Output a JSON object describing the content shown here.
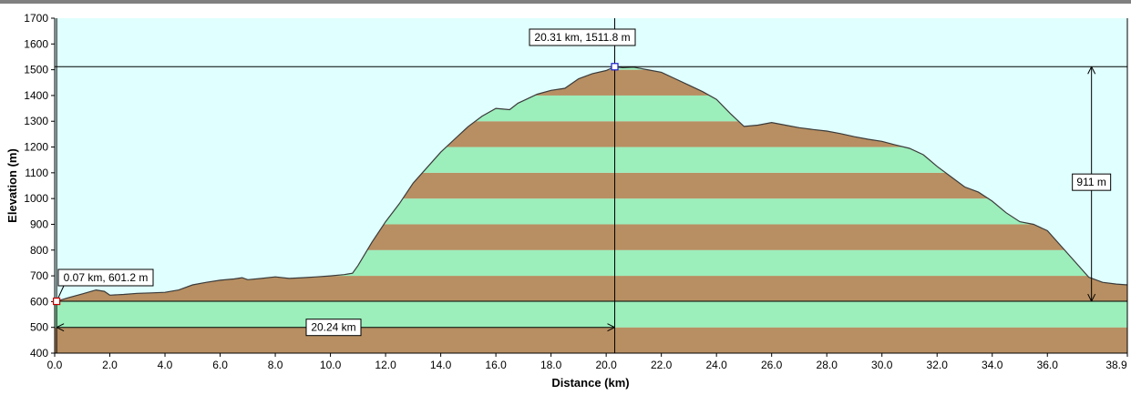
{
  "chart_data": {
    "type": "area",
    "xlabel": "Distance  (km)",
    "ylabel": "Elevation (m)",
    "xlim": [
      0,
      38.9
    ],
    "ylim": [
      400,
      1700
    ],
    "x_ticks": [
      0.0,
      2.0,
      4.0,
      6.0,
      8.0,
      10.0,
      12.0,
      14.0,
      16.0,
      18.0,
      20.0,
      22.0,
      24.0,
      26.0,
      28.0,
      30.0,
      32.0,
      34.0,
      36.0,
      38.9
    ],
    "x_tick_labels": [
      "0.0",
      "2.0",
      "4.0",
      "6.0",
      "8.0",
      "10.0",
      "12.0",
      "14.0",
      "16.0",
      "18.0",
      "20.0",
      "22.0",
      "24.0",
      "26.0",
      "28.0",
      "30.0",
      "32.0",
      "34.0",
      "36.0",
      "38.9"
    ],
    "y_ticks": [
      400,
      500,
      600,
      700,
      800,
      900,
      1000,
      1100,
      1200,
      1300,
      1400,
      1500,
      1600,
      1700
    ],
    "band_step": 100,
    "colors": {
      "sky": "#e0ffff",
      "band_green": "#9ceebb",
      "band_brown": "#b88f62",
      "profile_line": "#3a3a3a",
      "start_marker": "#cc0000",
      "end_marker": "#1a1acc"
    },
    "profile": {
      "x": [
        0.07,
        0.5,
        1.0,
        1.5,
        1.8,
        2.0,
        2.5,
        3.0,
        3.5,
        4.0,
        4.5,
        5.0,
        5.5,
        6.0,
        6.5,
        6.8,
        7.0,
        7.5,
        8.0,
        8.5,
        9.0,
        9.5,
        10.0,
        10.5,
        10.8,
        11.0,
        11.5,
        12.0,
        12.5,
        13.0,
        13.5,
        14.0,
        14.5,
        15.0,
        15.5,
        16.0,
        16.5,
        16.8,
        17.0,
        17.5,
        18.0,
        18.5,
        19.0,
        19.5,
        20.0,
        20.31,
        20.6,
        21.0,
        21.5,
        22.0,
        22.5,
        23.0,
        23.5,
        24.0,
        24.5,
        25.0,
        25.5,
        26.0,
        26.5,
        27.0,
        27.5,
        28.0,
        28.5,
        29.0,
        29.5,
        30.0,
        30.5,
        31.0,
        31.5,
        32.0,
        32.5,
        33.0,
        33.5,
        34.0,
        34.5,
        35.0,
        35.5,
        36.0,
        36.5,
        37.0,
        37.5,
        38.0,
        38.5,
        38.9
      ],
      "y": [
        601,
        615,
        630,
        645,
        640,
        625,
        628,
        632,
        634,
        636,
        645,
        665,
        675,
        683,
        688,
        693,
        685,
        690,
        696,
        690,
        693,
        696,
        700,
        705,
        710,
        740,
        830,
        910,
        980,
        1060,
        1120,
        1180,
        1230,
        1280,
        1320,
        1350,
        1345,
        1370,
        1380,
        1405,
        1420,
        1428,
        1465,
        1485,
        1497,
        1511.8,
        1508,
        1510,
        1500,
        1490,
        1465,
        1440,
        1415,
        1385,
        1330,
        1280,
        1285,
        1295,
        1285,
        1275,
        1268,
        1262,
        1252,
        1240,
        1230,
        1222,
        1208,
        1195,
        1170,
        1125,
        1085,
        1045,
        1025,
        990,
        945,
        910,
        900,
        875,
        815,
        755,
        695,
        675,
        668,
        665
      ]
    },
    "callouts": {
      "start": {
        "x": 0.07,
        "y": 601.2,
        "label": "0.07 km, 601.2 m"
      },
      "end": {
        "x": 20.31,
        "y": 1511.8,
        "label": "20.31 km, 1511.8 m"
      },
      "distance": {
        "from": 0.07,
        "to": 20.31,
        "at_y": 500,
        "label": "20.24 km"
      },
      "elevation_gain": {
        "at_x": 37.6,
        "from": 601.2,
        "to": 1511.8,
        "label": "911 m"
      }
    },
    "grid": false,
    "legend": "none"
  }
}
